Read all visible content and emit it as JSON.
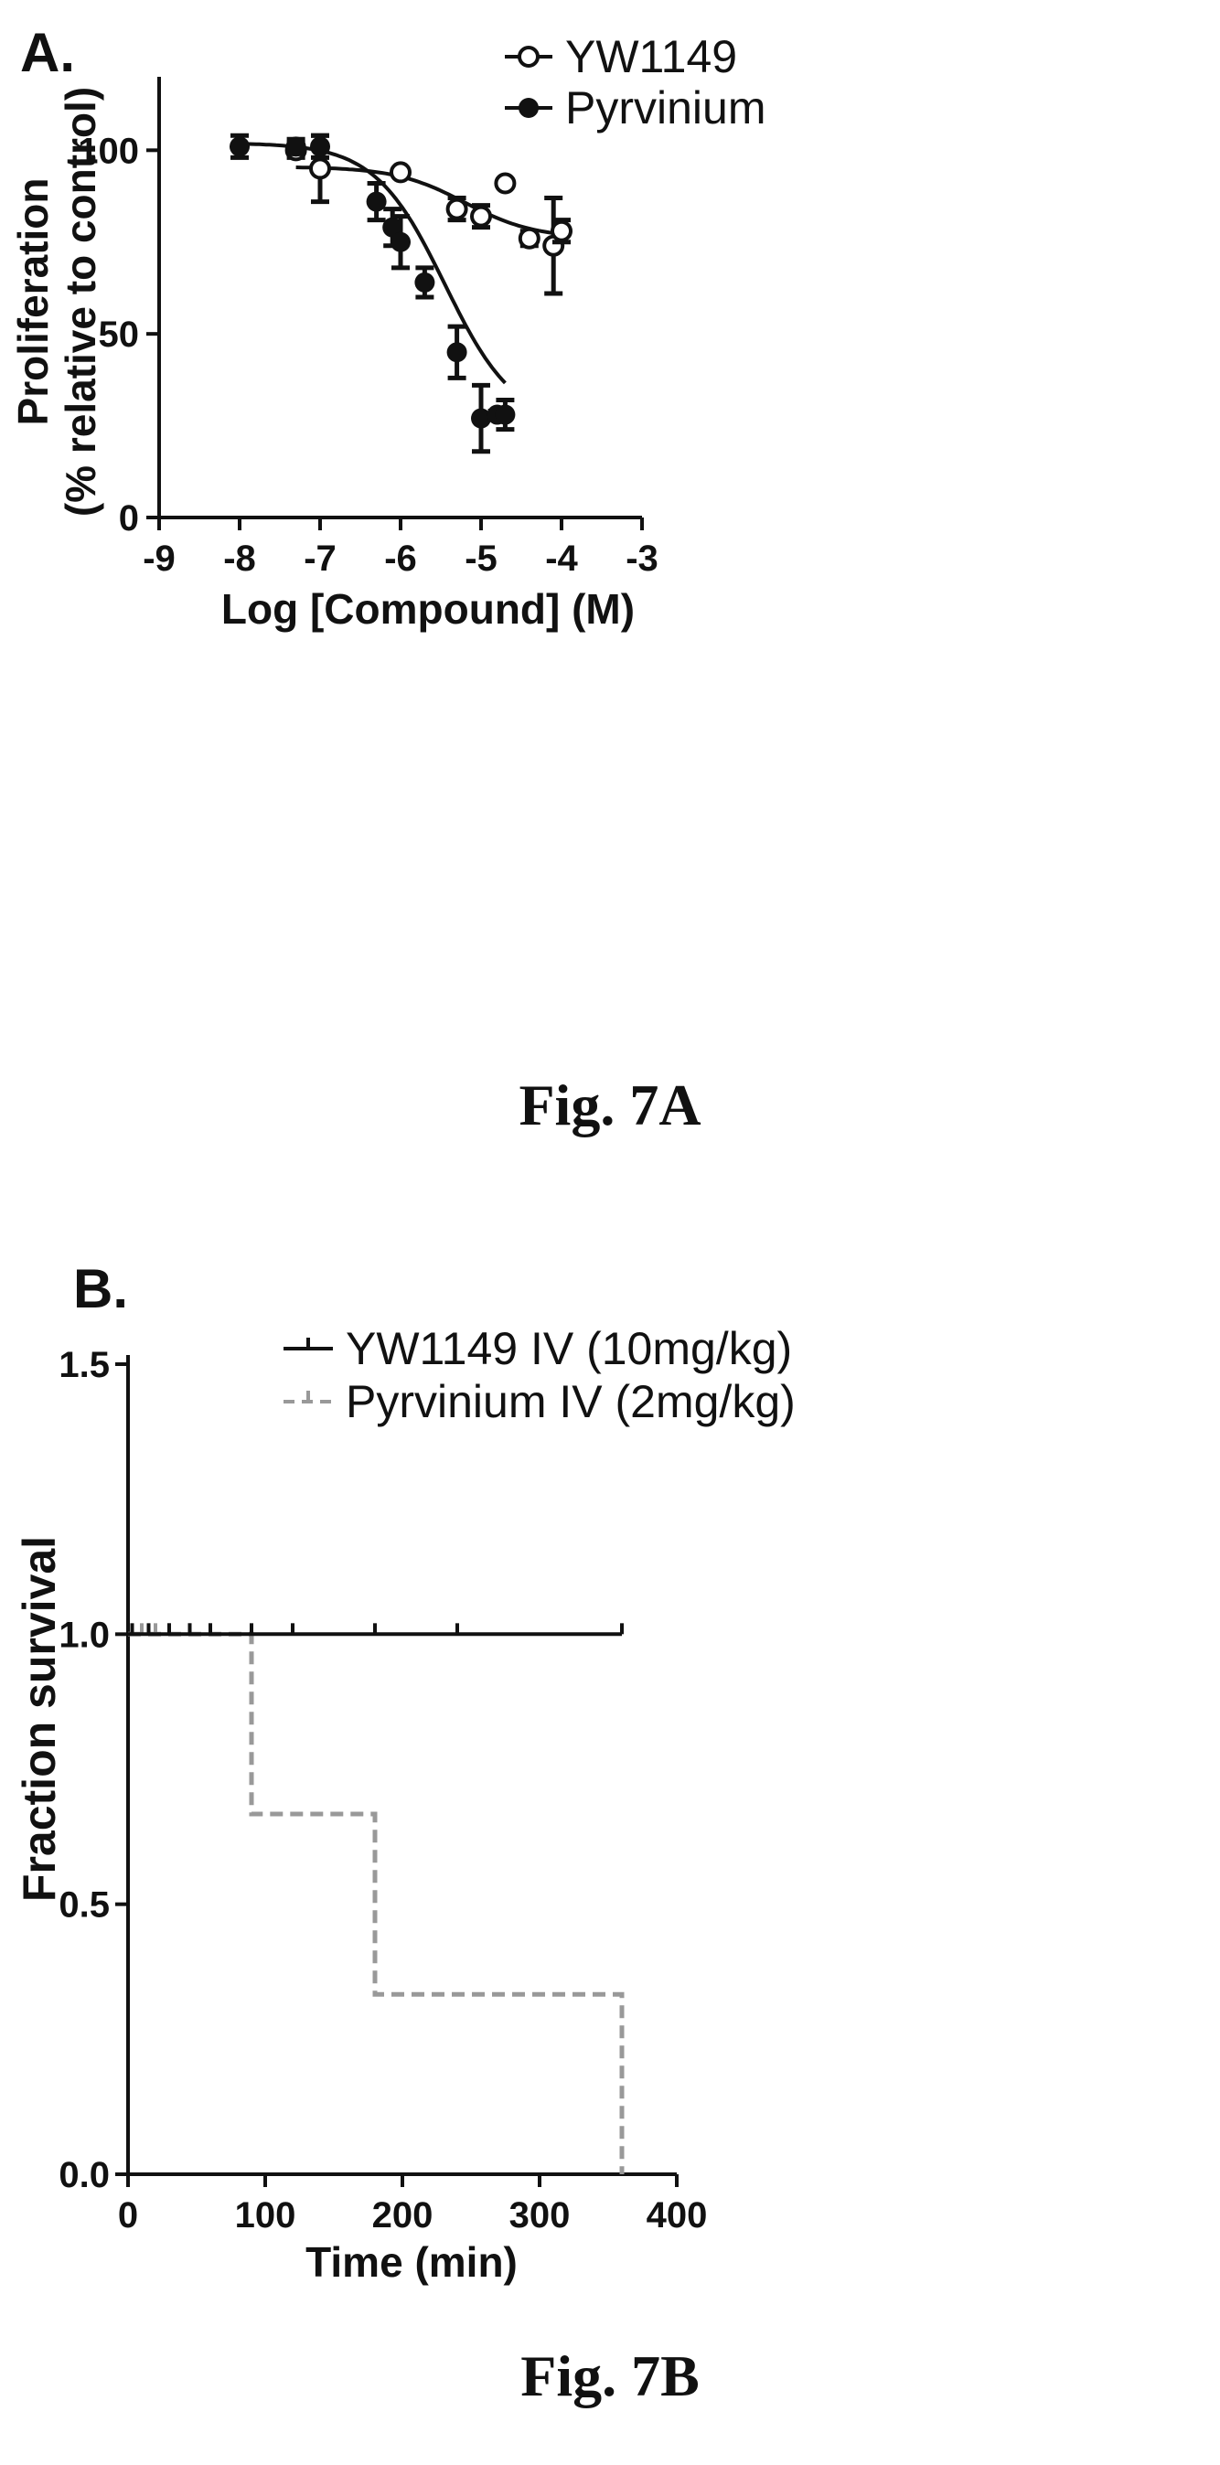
{
  "figure_a": {
    "panel_label": "A.",
    "caption": "Fig. 7A"
  },
  "figure_b": {
    "panel_label": "B.",
    "caption": "Fig. 7B"
  },
  "colors": {
    "ink": "#111111",
    "dashed_series": "#999999",
    "background": "#ffffff"
  },
  "chart_data": [
    {
      "type": "scatter",
      "xlabel": "Log [Compound] (M)",
      "ylabel_lines": [
        "Proliferation",
        "(%  relative to control)"
      ],
      "xlim": [
        -9,
        -3
      ],
      "ylim": [
        0,
        120
      ],
      "x_ticks": [
        -9,
        -8,
        -7,
        -6,
        -5,
        -4,
        -3
      ],
      "x_tick_labels": [
        "-9",
        "-8",
        "-7",
        "-6",
        "-5",
        "-4",
        "-3"
      ],
      "y_ticks": [
        0,
        50,
        100
      ],
      "y_tick_labels": [
        "0",
        "50",
        "100"
      ],
      "grid": false,
      "legend_position": "top-right",
      "series": [
        {
          "name": "YW1149",
          "marker": "open-circle",
          "x": [
            -7.3,
            -7.0,
            -6.0,
            -5.3,
            -5.0,
            -4.7,
            -4.4,
            -4.1,
            -4.0
          ],
          "y": [
            100,
            95,
            94,
            84,
            82,
            91,
            76,
            74,
            78
          ],
          "y_err": [
            2,
            9,
            1,
            3,
            3,
            1,
            2,
            13,
            3
          ],
          "fit_curve": {
            "top": 95.5,
            "bottom": 76,
            "log_ec50": -5.2,
            "hill": -1.0
          }
        },
        {
          "name": "Pyrvinium",
          "marker": "filled-circle",
          "x": [
            -8.0,
            -7.3,
            -7.0,
            -6.3,
            -6.1,
            -6.0,
            -5.7,
            -5.3,
            -5.0,
            -4.8,
            -4.7
          ],
          "y": [
            101,
            101,
            101,
            86,
            79,
            75,
            64,
            45,
            27,
            28,
            28
          ],
          "y_err": [
            3,
            2,
            3,
            5,
            5,
            7,
            4,
            7,
            9,
            1,
            4
          ],
          "fit_curve": {
            "top": 102,
            "bottom": 25,
            "log_ec50": -5.45,
            "hill": -1.0
          }
        }
      ]
    },
    {
      "type": "line",
      "xlabel": "Time (min)",
      "ylabel": "Fraction survival",
      "xlim": [
        0,
        400
      ],
      "ylim": [
        0,
        1.5
      ],
      "x_ticks": [
        0,
        100,
        200,
        300,
        400
      ],
      "x_tick_labels": [
        "0",
        "100",
        "200",
        "300",
        "400"
      ],
      "y_ticks": [
        0.0,
        0.5,
        1.0,
        1.5
      ],
      "y_tick_labels": [
        "0.0",
        "0.5",
        "1.0",
        "1.5"
      ],
      "grid": false,
      "legend_position": "top-right",
      "series": [
        {
          "name": "YW1149 IV (10mg/kg)",
          "style": "solid",
          "steps": [
            [
              0,
              1.0
            ],
            [
              360,
              1.0
            ]
          ],
          "censor_marks": [
            3,
            15,
            30,
            45,
            60,
            90,
            120,
            180,
            240,
            360
          ]
        },
        {
          "name": "Pyrvinium IV (2mg/kg)",
          "style": "dashed",
          "steps": [
            [
              0,
              1.0
            ],
            [
              90,
              1.0
            ],
            [
              90,
              0.667
            ],
            [
              180,
              0.667
            ],
            [
              180,
              0.333
            ],
            [
              360,
              0.333
            ],
            [
              360,
              0.0
            ]
          ],
          "censor_marks": [
            10,
            20,
            30,
            45,
            60
          ]
        }
      ]
    }
  ]
}
